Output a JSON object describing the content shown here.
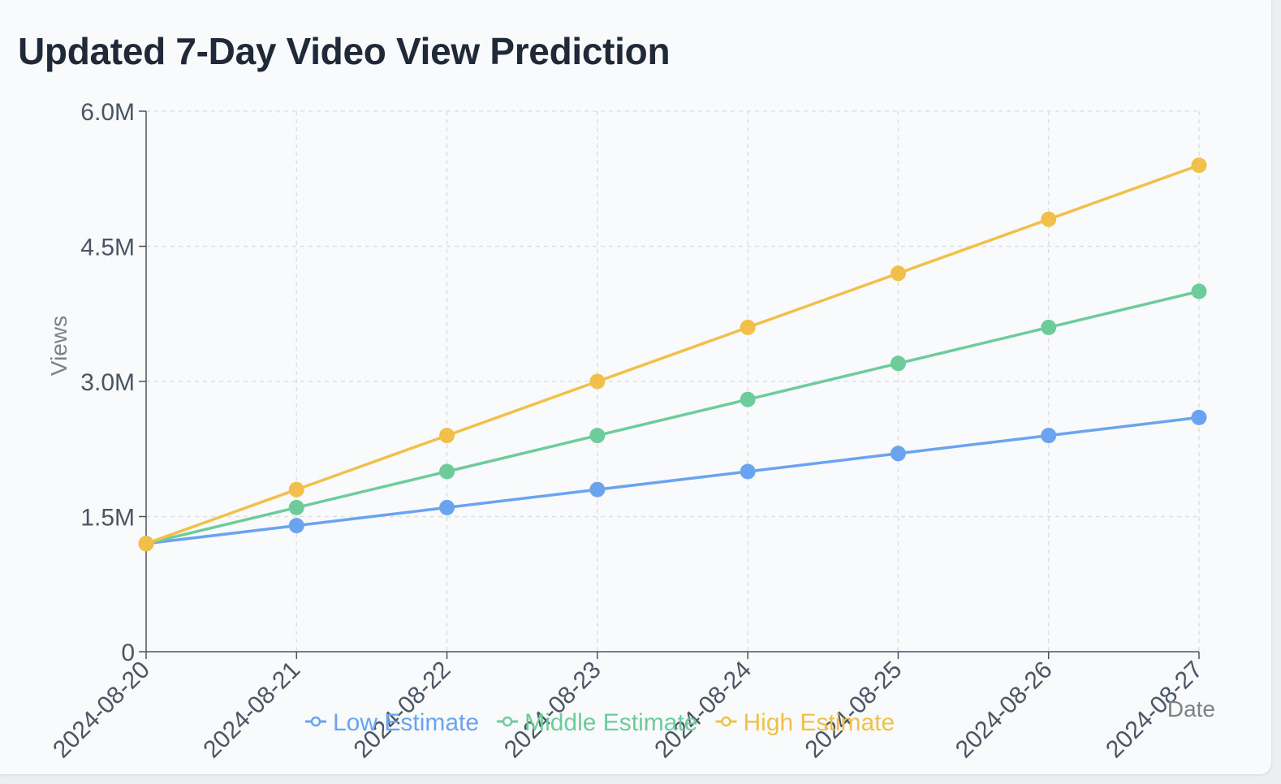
{
  "title": "Updated 7-Day Video View Prediction",
  "colors": {
    "low": "#6aa3f0",
    "middle": "#6dcc9a",
    "high": "#f2c04a",
    "grid": "#dcdfe3",
    "axis": "#4b5563"
  },
  "chart_data": {
    "type": "line",
    "title": "Updated 7-Day Video View Prediction",
    "xlabel": "Date",
    "ylabel": "Views",
    "x": [
      "2024-08-20",
      "2024-08-21",
      "2024-08-22",
      "2024-08-23",
      "2024-08-24",
      "2024-08-25",
      "2024-08-26",
      "2024-08-27"
    ],
    "ylim": [
      0,
      6000000
    ],
    "yticks": [
      {
        "value": 0,
        "label": "0"
      },
      {
        "value": 1500000,
        "label": "1.5M"
      },
      {
        "value": 3000000,
        "label": "3.0M"
      },
      {
        "value": 4500000,
        "label": "4.5M"
      },
      {
        "value": 6000000,
        "label": "6.0M"
      }
    ],
    "grid": true,
    "legend_position": "bottom",
    "series": [
      {
        "name": "Low Estimate",
        "color": "#6aa3f0",
        "values": [
          1200000,
          1400000,
          1600000,
          1800000,
          2000000,
          2200000,
          2400000,
          2600000
        ]
      },
      {
        "name": "Middle Estimate",
        "color": "#6dcc9a",
        "values": [
          1200000,
          1600000,
          2000000,
          2400000,
          2800000,
          3200000,
          3600000,
          4000000
        ]
      },
      {
        "name": "High Estimate",
        "color": "#f2c04a",
        "values": [
          1200000,
          1800000,
          2400000,
          3000000,
          3600000,
          4200000,
          4800000,
          5400000
        ]
      }
    ]
  }
}
